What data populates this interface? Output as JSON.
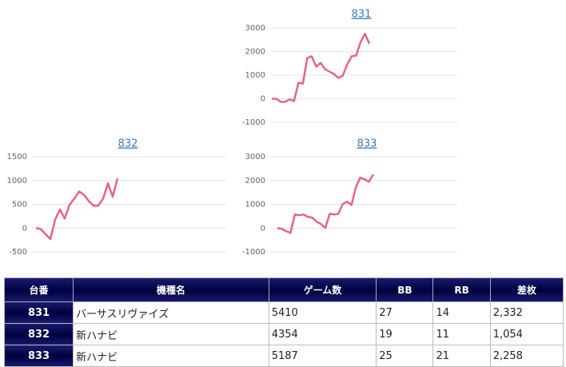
{
  "chart_data": [
    {
      "type": "line",
      "title": "831",
      "color": "#e8657f",
      "ylim": [
        -1000,
        3000
      ],
      "yticks": [
        -1000,
        0,
        1000,
        2000,
        3000
      ],
      "grid": true,
      "values": [
        0,
        0,
        -130,
        -130,
        -30,
        -100,
        680,
        640,
        1730,
        1800,
        1360,
        1520,
        1250,
        1150,
        1050,
        880,
        980,
        1460,
        1800,
        1830,
        2400,
        2750,
        2330
      ]
    },
    {
      "type": "line",
      "title": "832",
      "color": "#e8657f",
      "ylim": [
        -500,
        1500
      ],
      "yticks": [
        -500,
        0,
        500,
        1000,
        1500
      ],
      "grid": true,
      "values": [
        0,
        -20,
        -130,
        -230,
        180,
        390,
        200,
        490,
        620,
        770,
        700,
        570,
        470,
        470,
        620,
        940,
        660,
        1050
      ]
    },
    {
      "type": "line",
      "title": "833",
      "color": "#e8657f",
      "ylim": [
        -1000,
        3000
      ],
      "yticks": [
        -1000,
        0,
        1000,
        2000,
        3000
      ],
      "grid": true,
      "values": [
        0,
        -30,
        -130,
        -200,
        570,
        540,
        570,
        470,
        440,
        270,
        170,
        0,
        600,
        570,
        600,
        1010,
        1110,
        970,
        1710,
        2120,
        2050,
        1950,
        2250
      ]
    }
  ],
  "table": {
    "header": [
      "台番",
      "機種名",
      "ゲーム数",
      "BB",
      "RB",
      "差枚"
    ],
    "rows": [
      [
        "831",
        "バーサスリヴァイズ",
        "5410",
        "27",
        "14",
        "2,332"
      ],
      [
        "832",
        "新ハナビ",
        "4354",
        "19",
        "11",
        "1,054"
      ],
      [
        "833",
        "新ハナビ",
        "5187",
        "25",
        "21",
        "2,258"
      ]
    ]
  }
}
